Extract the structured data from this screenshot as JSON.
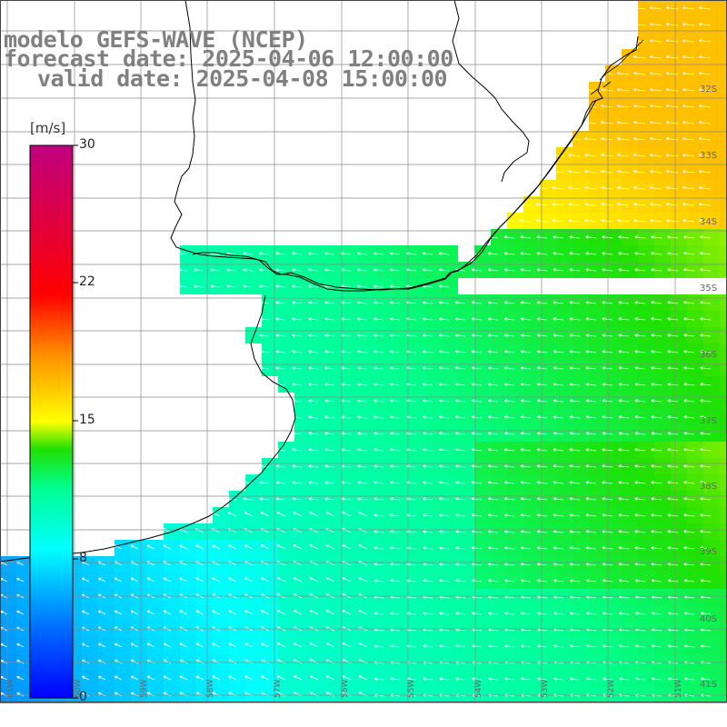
{
  "title": {
    "model": "modelo GEFS-WAVE (NCEP)",
    "forecast": "forecast date: 2025-04-06 12:00:00",
    "valid": "valid date: 2025-04-08 15:00:00"
  },
  "colorbar": {
    "unit": "[m/s]",
    "ticks": [
      "30",
      "22",
      "15",
      "8",
      "0"
    ],
    "tick_values": [
      30,
      22,
      15,
      8,
      0
    ],
    "range": [
      0,
      30
    ],
    "colors": [
      "#0000ff",
      "#0080ff",
      "#00e0ff",
      "#00ff80",
      "#40e000",
      "#ffff00",
      "#ff8000",
      "#ff0000",
      "#c00080"
    ]
  },
  "map": {
    "quantity": "wind speed and direction",
    "lat_labels": [
      "32S",
      "33S",
      "34S",
      "35S",
      "36S",
      "37S",
      "38S",
      "39S",
      "40S",
      "41S"
    ],
    "lon_labels": [
      "61W",
      "60W",
      "59W",
      "58W",
      "57W",
      "56W",
      "55W",
      "54W",
      "53W",
      "52W",
      "51W"
    ],
    "land_color": "#ffffff",
    "grid_color": "#888888"
  }
}
